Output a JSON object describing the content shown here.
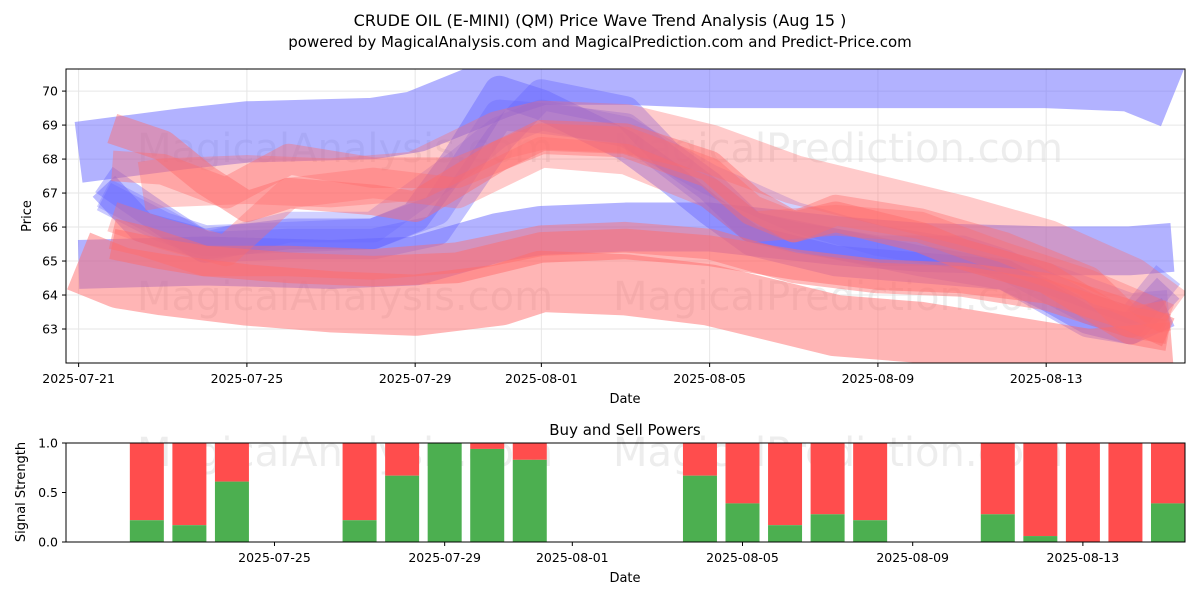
{
  "title_line1": "CRUDE OIL (E-MINI) (QM) Price Wave Trend Analysis (Aug 15 )",
  "title_line2": "powered by MagicalAnalysis.com and MagicalPrediction.com and Predict-Price.com",
  "watermarks": [
    "MagicalAnalysis.com",
    "MagicalPrediction.com"
  ],
  "colors": {
    "blue": "#6666ff",
    "red": "#ff6b6b",
    "buy": "#4caf50",
    "sell": "#ff4d4d"
  },
  "chart_data": [
    {
      "type": "line",
      "name": "price-wave-chart",
      "xlabel": "Date",
      "ylabel": "Price",
      "ylim": [
        62.0,
        70.65
      ],
      "xlim_days": [
        -0.3,
        26.3
      ],
      "x_ticks": [
        "2025-07-21",
        "2025-07-25",
        "2025-07-29",
        "2025-08-01",
        "2025-08-05",
        "2025-08-09",
        "2025-08-13"
      ],
      "x_tick_days": [
        0,
        4,
        8,
        11,
        15,
        19,
        23
      ],
      "y_ticks": [
        63,
        64,
        65,
        66,
        67,
        68,
        69,
        70
      ],
      "grid": true,
      "series": [
        {
          "name": "blue-upper-channel",
          "color": "blue",
          "opacity": 0.5,
          "width": 10,
          "x": [
            0,
            2.5,
            4,
            7,
            8,
            10,
            11,
            13,
            15,
            18,
            20,
            23,
            25,
            26
          ],
          "y": [
            68.2,
            68.6,
            68.8,
            68.9,
            69.1,
            70.1,
            70.5,
            70.5,
            70.4,
            70.4,
            70.4,
            70.4,
            70.3,
            69.8
          ]
        },
        {
          "name": "blue-lower-channel",
          "color": "blue",
          "opacity": 0.5,
          "width": 8,
          "x": [
            0,
            3,
            6,
            8,
            10,
            11,
            13,
            15,
            18,
            20,
            23,
            25,
            26
          ],
          "y": [
            64.9,
            65.0,
            64.9,
            65.0,
            65.7,
            65.9,
            66.0,
            66.0,
            65.6,
            65.4,
            65.3,
            65.3,
            65.4
          ]
        },
        {
          "name": "blue-wave-1",
          "color": "blue",
          "opacity": 0.45,
          "width": 5,
          "x": [
            0.6,
            1.5,
            3,
            5,
            7,
            8,
            9,
            10,
            11,
            13,
            14,
            15,
            16,
            18,
            20,
            22,
            23,
            24,
            25,
            25.9
          ],
          "y": [
            67.2,
            66.0,
            65.5,
            65.8,
            65.8,
            66.3,
            68.0,
            70.0,
            69.6,
            68.4,
            67.5,
            66.5,
            65.6,
            65.0,
            64.8,
            64.6,
            64.0,
            63.3,
            63.0,
            63.5
          ]
        },
        {
          "name": "blue-wave-2",
          "color": "blue",
          "opacity": 0.4,
          "width": 5,
          "x": [
            0.6,
            2,
            3,
            5,
            7,
            8.5,
            10,
            11,
            13,
            14,
            15,
            16,
            18,
            20,
            22,
            23,
            24,
            25,
            25.9
          ],
          "y": [
            67.4,
            66.2,
            65.4,
            65.5,
            65.5,
            65.9,
            68.6,
            69.9,
            69.4,
            68.1,
            67.2,
            66.0,
            65.5,
            65.0,
            64.6,
            63.9,
            63.2,
            63.0,
            64.2
          ]
        },
        {
          "name": "blue-wave-3",
          "color": "blue",
          "opacity": 0.35,
          "width": 5,
          "x": [
            0.6,
            2,
            3,
            5,
            7,
            8.5,
            10,
            11,
            13,
            15,
            16,
            17,
            19,
            21,
            22,
            24,
            25,
            25.9
          ],
          "y": [
            66.9,
            66.0,
            65.6,
            65.7,
            65.8,
            66.5,
            69.3,
            69.2,
            68.9,
            67.0,
            66.0,
            65.7,
            65.3,
            65.3,
            64.9,
            63.6,
            63.2,
            64.6
          ]
        },
        {
          "name": "blue-wave-4",
          "color": "blue",
          "opacity": 0.3,
          "width": 5,
          "x": [
            0.6,
            2,
            3,
            5,
            7,
            9,
            10,
            11,
            13,
            15,
            17,
            19,
            21,
            23,
            25,
            25.9
          ],
          "y": [
            67.0,
            66.1,
            65.4,
            66.0,
            66.0,
            67.8,
            68.8,
            69.3,
            68.8,
            67.4,
            66.3,
            65.6,
            65.2,
            64.5,
            63.6,
            63.7
          ]
        },
        {
          "name": "red-upper-channel",
          "color": "red",
          "opacity": 0.35,
          "width": 8,
          "x": [
            1.5,
            2,
            4,
            6,
            8,
            10,
            11,
            13,
            15,
            17,
            19,
            21,
            23,
            25,
            26
          ],
          "y": [
            67.2,
            67.3,
            67.4,
            67.3,
            67.5,
            68.7,
            69.0,
            68.9,
            68.3,
            67.4,
            66.8,
            66.2,
            65.5,
            64.4,
            63.5
          ]
        },
        {
          "name": "red-lower-channel",
          "color": "red",
          "opacity": 0.5,
          "width": 10,
          "x": [
            0,
            1,
            2,
            4,
            6,
            8,
            10,
            11,
            13,
            15,
            17,
            18,
            20,
            22,
            24,
            26
          ],
          "y": [
            65.0,
            64.5,
            64.3,
            64.0,
            63.8,
            63.7,
            64.0,
            64.4,
            64.3,
            64.0,
            63.4,
            63.1,
            62.9,
            62.5,
            62.1,
            62.3
          ]
        },
        {
          "name": "red-wave-1",
          "color": "red",
          "opacity": 0.45,
          "width": 5,
          "x": [
            0.8,
            2,
            3,
            4,
            5,
            7,
            8,
            10,
            11,
            13,
            15,
            16,
            17,
            18,
            20,
            21,
            23,
            25,
            25.9
          ],
          "y": [
            68.9,
            68.4,
            67.4,
            66.6,
            67.0,
            66.8,
            66.6,
            68.1,
            68.7,
            68.6,
            67.8,
            66.7,
            66.0,
            66.3,
            65.7,
            65.2,
            64.5,
            63.0,
            62.8
          ]
        },
        {
          "name": "red-wave-2",
          "color": "red",
          "opacity": 0.4,
          "width": 5,
          "x": [
            0.8,
            2,
            3.5,
            5,
            7,
            9,
            11,
            13,
            15,
            16,
            17,
            18,
            20,
            22,
            24,
            25,
            25.9
          ],
          "y": [
            67.8,
            67.7,
            67.0,
            68.0,
            67.6,
            67.6,
            68.6,
            68.5,
            67.6,
            66.5,
            66.0,
            66.5,
            66.1,
            65.4,
            64.4,
            63.2,
            63.4
          ]
        },
        {
          "name": "red-wave-3",
          "color": "red",
          "opacity": 0.35,
          "width": 5,
          "x": [
            0.8,
            2,
            3.5,
            5,
            7,
            9,
            11,
            13,
            15,
            16,
            18,
            20,
            22,
            24,
            25.9
          ],
          "y": [
            66.3,
            65.8,
            65.3,
            67.0,
            67.3,
            67.0,
            68.2,
            68.0,
            67.0,
            66.0,
            66.2,
            66.0,
            65.1,
            64.3,
            63.3
          ]
        },
        {
          "name": "red-wave-4",
          "color": "red",
          "opacity": 0.45,
          "width": 5,
          "x": [
            0.8,
            1.5,
            3,
            5,
            7,
            9,
            11,
            13,
            15,
            17,
            19,
            21,
            23,
            25,
            25.9
          ],
          "y": [
            65.8,
            65.6,
            65.0,
            65.0,
            64.9,
            65.1,
            65.6,
            65.7,
            65.5,
            64.8,
            64.5,
            64.4,
            64.0,
            63.2,
            63.0
          ]
        },
        {
          "name": "red-wave-5",
          "color": "red",
          "opacity": 0.5,
          "width": 5,
          "x": [
            0.8,
            2,
            3,
            5,
            7,
            9,
            11,
            13,
            15,
            17,
            19,
            21,
            23,
            25,
            25.9
          ],
          "y": [
            65.5,
            65.2,
            65.0,
            64.8,
            64.7,
            64.8,
            65.4,
            65.5,
            65.3,
            64.9,
            64.6,
            64.5,
            64.2,
            63.4,
            62.9
          ]
        }
      ]
    },
    {
      "type": "bar",
      "name": "buy-sell-powers-chart",
      "title": "Buy and Sell Powers",
      "xlabel": "Date",
      "ylabel": "Signal Strength",
      "ylim": [
        0,
        1.0
      ],
      "xlim_days": [
        -0.9,
        25.4
      ],
      "y_ticks": [
        "0.0",
        "0.5",
        "1.0"
      ],
      "x_ticks": [
        "2025-07-25",
        "2025-07-29",
        "2025-08-01",
        "2025-08-05",
        "2025-08-09",
        "2025-08-13"
      ],
      "x_tick_days": [
        4,
        8,
        11,
        15,
        19,
        23
      ],
      "series": [
        {
          "name": "Buy",
          "color": "buy"
        },
        {
          "name": "Sell",
          "color": "sell"
        }
      ],
      "bars": [
        {
          "day": 1,
          "buy": 0.22
        },
        {
          "day": 2,
          "buy": 0.17
        },
        {
          "day": 3,
          "buy": 0.61
        },
        {
          "day": 6,
          "buy": 0.22
        },
        {
          "day": 7,
          "buy": 0.67
        },
        {
          "day": 8,
          "buy": 1.0
        },
        {
          "day": 9,
          "buy": 0.94
        },
        {
          "day": 10,
          "buy": 0.83
        },
        {
          "day": 14,
          "buy": 0.67
        },
        {
          "day": 15,
          "buy": 0.39
        },
        {
          "day": 16,
          "buy": 0.17
        },
        {
          "day": 17,
          "buy": 0.28
        },
        {
          "day": 18,
          "buy": 0.22
        },
        {
          "day": 21,
          "buy": 0.28
        },
        {
          "day": 22,
          "buy": 0.06
        },
        {
          "day": 23,
          "buy": 0.0
        },
        {
          "day": 24,
          "buy": 0.0
        },
        {
          "day": 25,
          "buy": 0.39
        }
      ]
    }
  ]
}
